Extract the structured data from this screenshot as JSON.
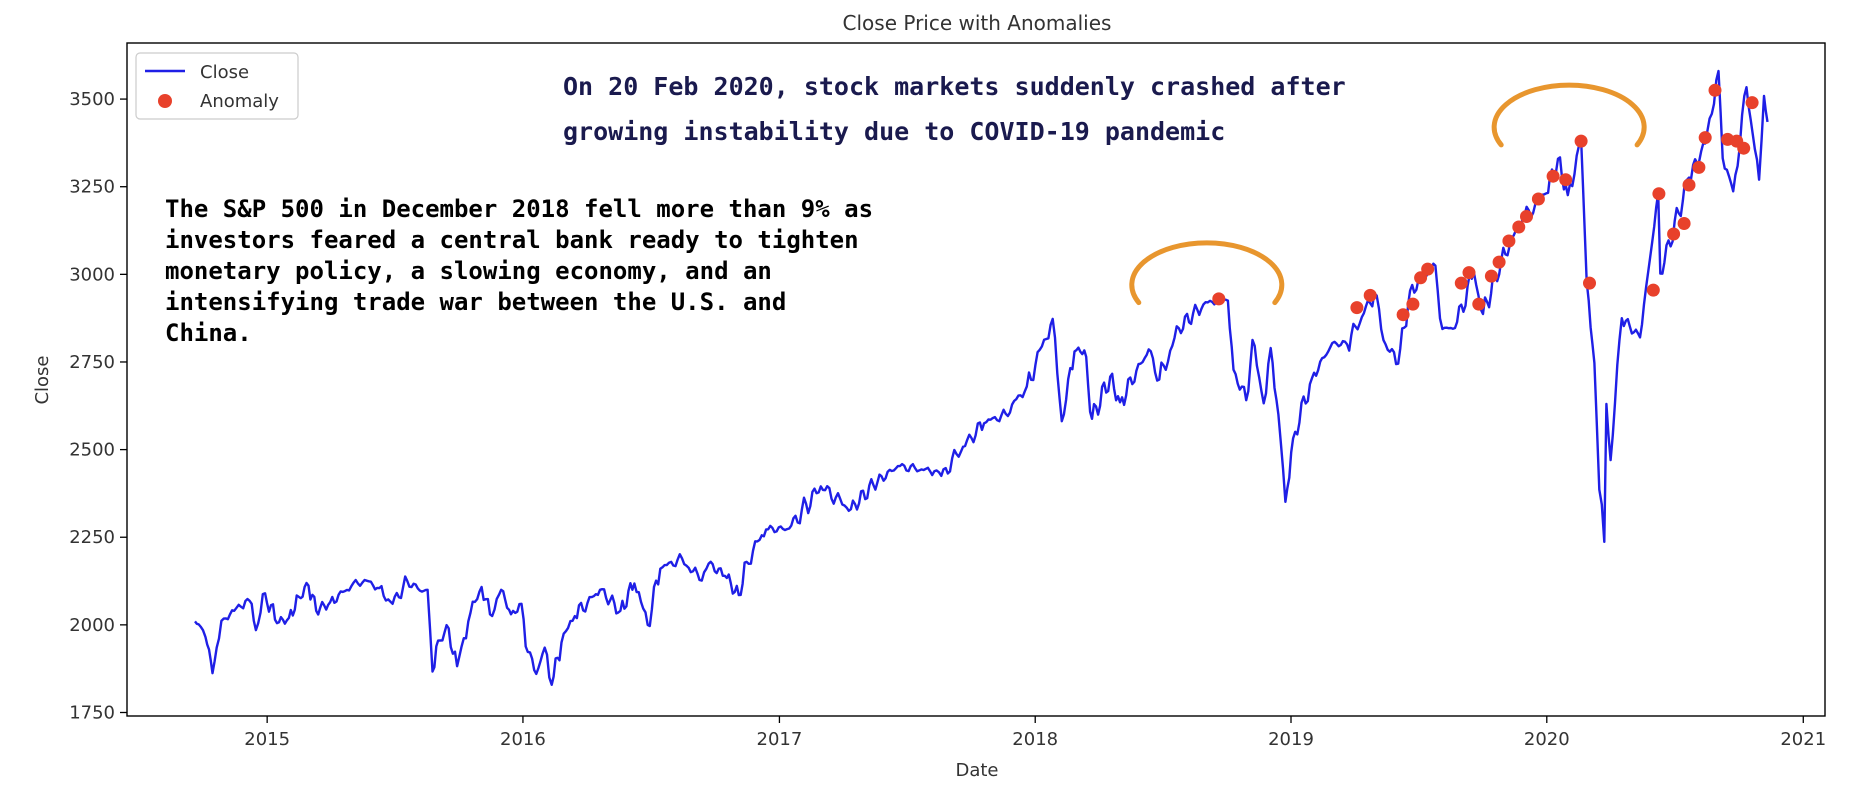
{
  "chart_data": {
    "type": "line",
    "title": "Close Price with Anomalies",
    "xlabel": "Date",
    "ylabel": "Close",
    "xlim": [
      "2014-06-15",
      "2021-02-01"
    ],
    "ylim": [
      1740,
      3660
    ],
    "x_ticks": [
      "2015",
      "2016",
      "2017",
      "2018",
      "2019",
      "2020",
      "2021"
    ],
    "y_ticks": [
      1750,
      2000,
      2250,
      2500,
      2750,
      3000,
      3250,
      3500
    ],
    "legend_position": "top-left",
    "series": [
      {
        "name": "Close",
        "color": "#1f1fe6",
        "points": [
          [
            "2014-09-20",
            2010
          ],
          [
            "2014-09-28",
            1995
          ],
          [
            "2014-10-05",
            1965
          ],
          [
            "2014-10-10",
            1930
          ],
          [
            "2014-10-15",
            1862
          ],
          [
            "2014-10-21",
            1935
          ],
          [
            "2014-10-31",
            2018
          ],
          [
            "2014-11-15",
            2040
          ],
          [
            "2014-12-01",
            2068
          ],
          [
            "2014-12-10",
            2060
          ],
          [
            "2014-12-16",
            1985
          ],
          [
            "2014-12-29",
            2090
          ],
          [
            "2015-01-15",
            2005
          ],
          [
            "2015-02-01",
            2020
          ],
          [
            "2015-02-15",
            2080
          ],
          [
            "2015-03-01",
            2112
          ],
          [
            "2015-03-12",
            2040
          ],
          [
            "2015-04-01",
            2065
          ],
          [
            "2015-05-01",
            2110
          ],
          [
            "2015-05-20",
            2128
          ],
          [
            "2015-06-10",
            2105
          ],
          [
            "2015-06-29",
            2060
          ],
          [
            "2015-07-20",
            2125
          ],
          [
            "2015-08-10",
            2095
          ],
          [
            "2015-08-18",
            2100
          ],
          [
            "2015-08-25",
            1867
          ],
          [
            "2015-09-02",
            1955
          ],
          [
            "2015-09-17",
            1990
          ],
          [
            "2015-09-29",
            1882
          ],
          [
            "2015-10-15",
            2010
          ],
          [
            "2015-11-03",
            2108
          ],
          [
            "2015-11-15",
            2030
          ],
          [
            "2015-12-01",
            2100
          ],
          [
            "2015-12-15",
            2030
          ],
          [
            "2015-12-30",
            2060
          ],
          [
            "2016-01-08",
            1923
          ],
          [
            "2016-01-20",
            1860
          ],
          [
            "2016-02-01",
            1935
          ],
          [
            "2016-02-11",
            1829
          ],
          [
            "2016-02-25",
            1950
          ],
          [
            "2016-03-15",
            2025
          ],
          [
            "2016-04-20",
            2100
          ],
          [
            "2016-05-19",
            2040
          ],
          [
            "2016-06-08",
            2118
          ],
          [
            "2016-06-27",
            2000
          ],
          [
            "2016-07-15",
            2160
          ],
          [
            "2016-08-15",
            2190
          ],
          [
            "2016-09-09",
            2128
          ],
          [
            "2016-09-22",
            2175
          ],
          [
            "2016-10-15",
            2140
          ],
          [
            "2016-11-04",
            2085
          ],
          [
            "2016-11-15",
            2180
          ],
          [
            "2016-12-13",
            2272
          ],
          [
            "2017-01-15",
            2275
          ],
          [
            "2017-03-01",
            2395
          ],
          [
            "2017-04-13",
            2330
          ],
          [
            "2017-05-15",
            2400
          ],
          [
            "2017-06-19",
            2453
          ],
          [
            "2017-08-10",
            2438
          ],
          [
            "2017-08-20",
            2425
          ],
          [
            "2017-09-20",
            2508
          ],
          [
            "2017-10-20",
            2575
          ],
          [
            "2017-11-20",
            2602
          ],
          [
            "2017-12-20",
            2680
          ],
          [
            "2018-01-26",
            2873
          ],
          [
            "2018-02-08",
            2581
          ],
          [
            "2018-02-26",
            2780
          ],
          [
            "2018-03-12",
            2783
          ],
          [
            "2018-03-23",
            2588
          ],
          [
            "2018-04-18",
            2708
          ],
          [
            "2018-05-02",
            2635
          ],
          [
            "2018-06-12",
            2786
          ],
          [
            "2018-06-27",
            2700
          ],
          [
            "2018-07-25",
            2846
          ],
          [
            "2018-08-29",
            2914
          ],
          [
            "2018-09-20",
            2930
          ],
          [
            "2018-10-03",
            2925
          ],
          [
            "2018-10-11",
            2728
          ],
          [
            "2018-10-29",
            2641
          ],
          [
            "2018-11-07",
            2813
          ],
          [
            "2018-11-23",
            2632
          ],
          [
            "2018-12-03",
            2790
          ],
          [
            "2018-12-14",
            2600
          ],
          [
            "2018-12-24",
            2351
          ],
          [
            "2019-01-04",
            2532
          ],
          [
            "2019-01-31",
            2704
          ],
          [
            "2019-03-01",
            2804
          ],
          [
            "2019-03-22",
            2800
          ],
          [
            "2019-04-30",
            2946
          ],
          [
            "2019-05-13",
            2812
          ],
          [
            "2019-06-03",
            2745
          ],
          [
            "2019-06-20",
            2954
          ],
          [
            "2019-07-26",
            3025
          ],
          [
            "2019-08-05",
            2844
          ],
          [
            "2019-08-23",
            2847
          ],
          [
            "2019-09-19",
            3006
          ],
          [
            "2019-10-02",
            2887
          ],
          [
            "2019-10-28",
            3039
          ],
          [
            "2019-11-27",
            3154
          ],
          [
            "2019-12-31",
            3231
          ],
          [
            "2020-01-17",
            3330
          ],
          [
            "2020-01-31",
            3226
          ],
          [
            "2020-02-19",
            3386
          ],
          [
            "2020-02-27",
            2979
          ],
          [
            "2020-03-09",
            2747
          ],
          [
            "2020-03-16",
            2386
          ],
          [
            "2020-03-23",
            2237
          ],
          [
            "2020-03-26",
            2630
          ],
          [
            "2020-04-01",
            2470
          ],
          [
            "2020-04-17",
            2875
          ],
          [
            "2020-05-13",
            2820
          ],
          [
            "2020-06-08",
            3232
          ],
          [
            "2020-06-11",
            3002
          ],
          [
            "2020-07-22",
            3276
          ],
          [
            "2020-08-14",
            3373
          ],
          [
            "2020-09-02",
            3580
          ],
          [
            "2020-09-08",
            3331
          ],
          [
            "2020-09-23",
            3237
          ],
          [
            "2020-10-12",
            3534
          ],
          [
            "2020-10-30",
            3270
          ],
          [
            "2020-11-06",
            3509
          ],
          [
            "2020-11-11",
            3435
          ]
        ]
      }
    ],
    "anomalies": {
      "name": "Anomaly",
      "color": "#e8412b",
      "points": [
        [
          "2018-09-20",
          2930
        ],
        [
          "2019-04-05",
          2905
        ],
        [
          "2019-04-24",
          2940
        ],
        [
          "2019-06-10",
          2885
        ],
        [
          "2019-06-24",
          2915
        ],
        [
          "2019-07-05",
          2990
        ],
        [
          "2019-07-15",
          3015
        ],
        [
          "2019-09-01",
          2975
        ],
        [
          "2019-09-12",
          3005
        ],
        [
          "2019-09-26",
          2915
        ],
        [
          "2019-10-14",
          2995
        ],
        [
          "2019-10-25",
          3035
        ],
        [
          "2019-11-08",
          3095
        ],
        [
          "2019-11-22",
          3135
        ],
        [
          "2019-12-03",
          3165
        ],
        [
          "2019-12-20",
          3215
        ],
        [
          "2020-01-10",
          3280
        ],
        [
          "2020-01-28",
          3270
        ],
        [
          "2020-02-19",
          3380
        ],
        [
          "2020-03-02",
          2975
        ],
        [
          "2020-06-01",
          2955
        ],
        [
          "2020-06-09",
          3230
        ],
        [
          "2020-06-30",
          3115
        ],
        [
          "2020-07-15",
          3145
        ],
        [
          "2020-07-22",
          3255
        ],
        [
          "2020-08-05",
          3305
        ],
        [
          "2020-08-14",
          3390
        ],
        [
          "2020-08-28",
          3525
        ],
        [
          "2020-09-15",
          3385
        ],
        [
          "2020-09-28",
          3380
        ],
        [
          "2020-10-08",
          3360
        ],
        [
          "2020-10-20",
          3490
        ]
      ]
    },
    "annotations": [
      {
        "lines": [
          "On 20 Feb 2020, stock markets suddenly crashed after",
          "growing instability due to COVID-19 pandemic"
        ],
        "color": "#1a1a4e"
      },
      {
        "lines": [
          "The S&P 500 in December 2018 fell more than 9% as",
          "investors feared a central bank ready to tighten",
          "monetary policy, a slowing economy, and an",
          "intensifying trade war between the U.S. and",
          "China."
        ],
        "color": "#000000"
      }
    ],
    "highlight_arcs": [
      {
        "center_x": "2018-09-20",
        "center_y": 2930,
        "color": "#e8962e"
      },
      {
        "center_x": "2020-02-19",
        "center_y": 3380,
        "color": "#e8962e"
      }
    ]
  }
}
